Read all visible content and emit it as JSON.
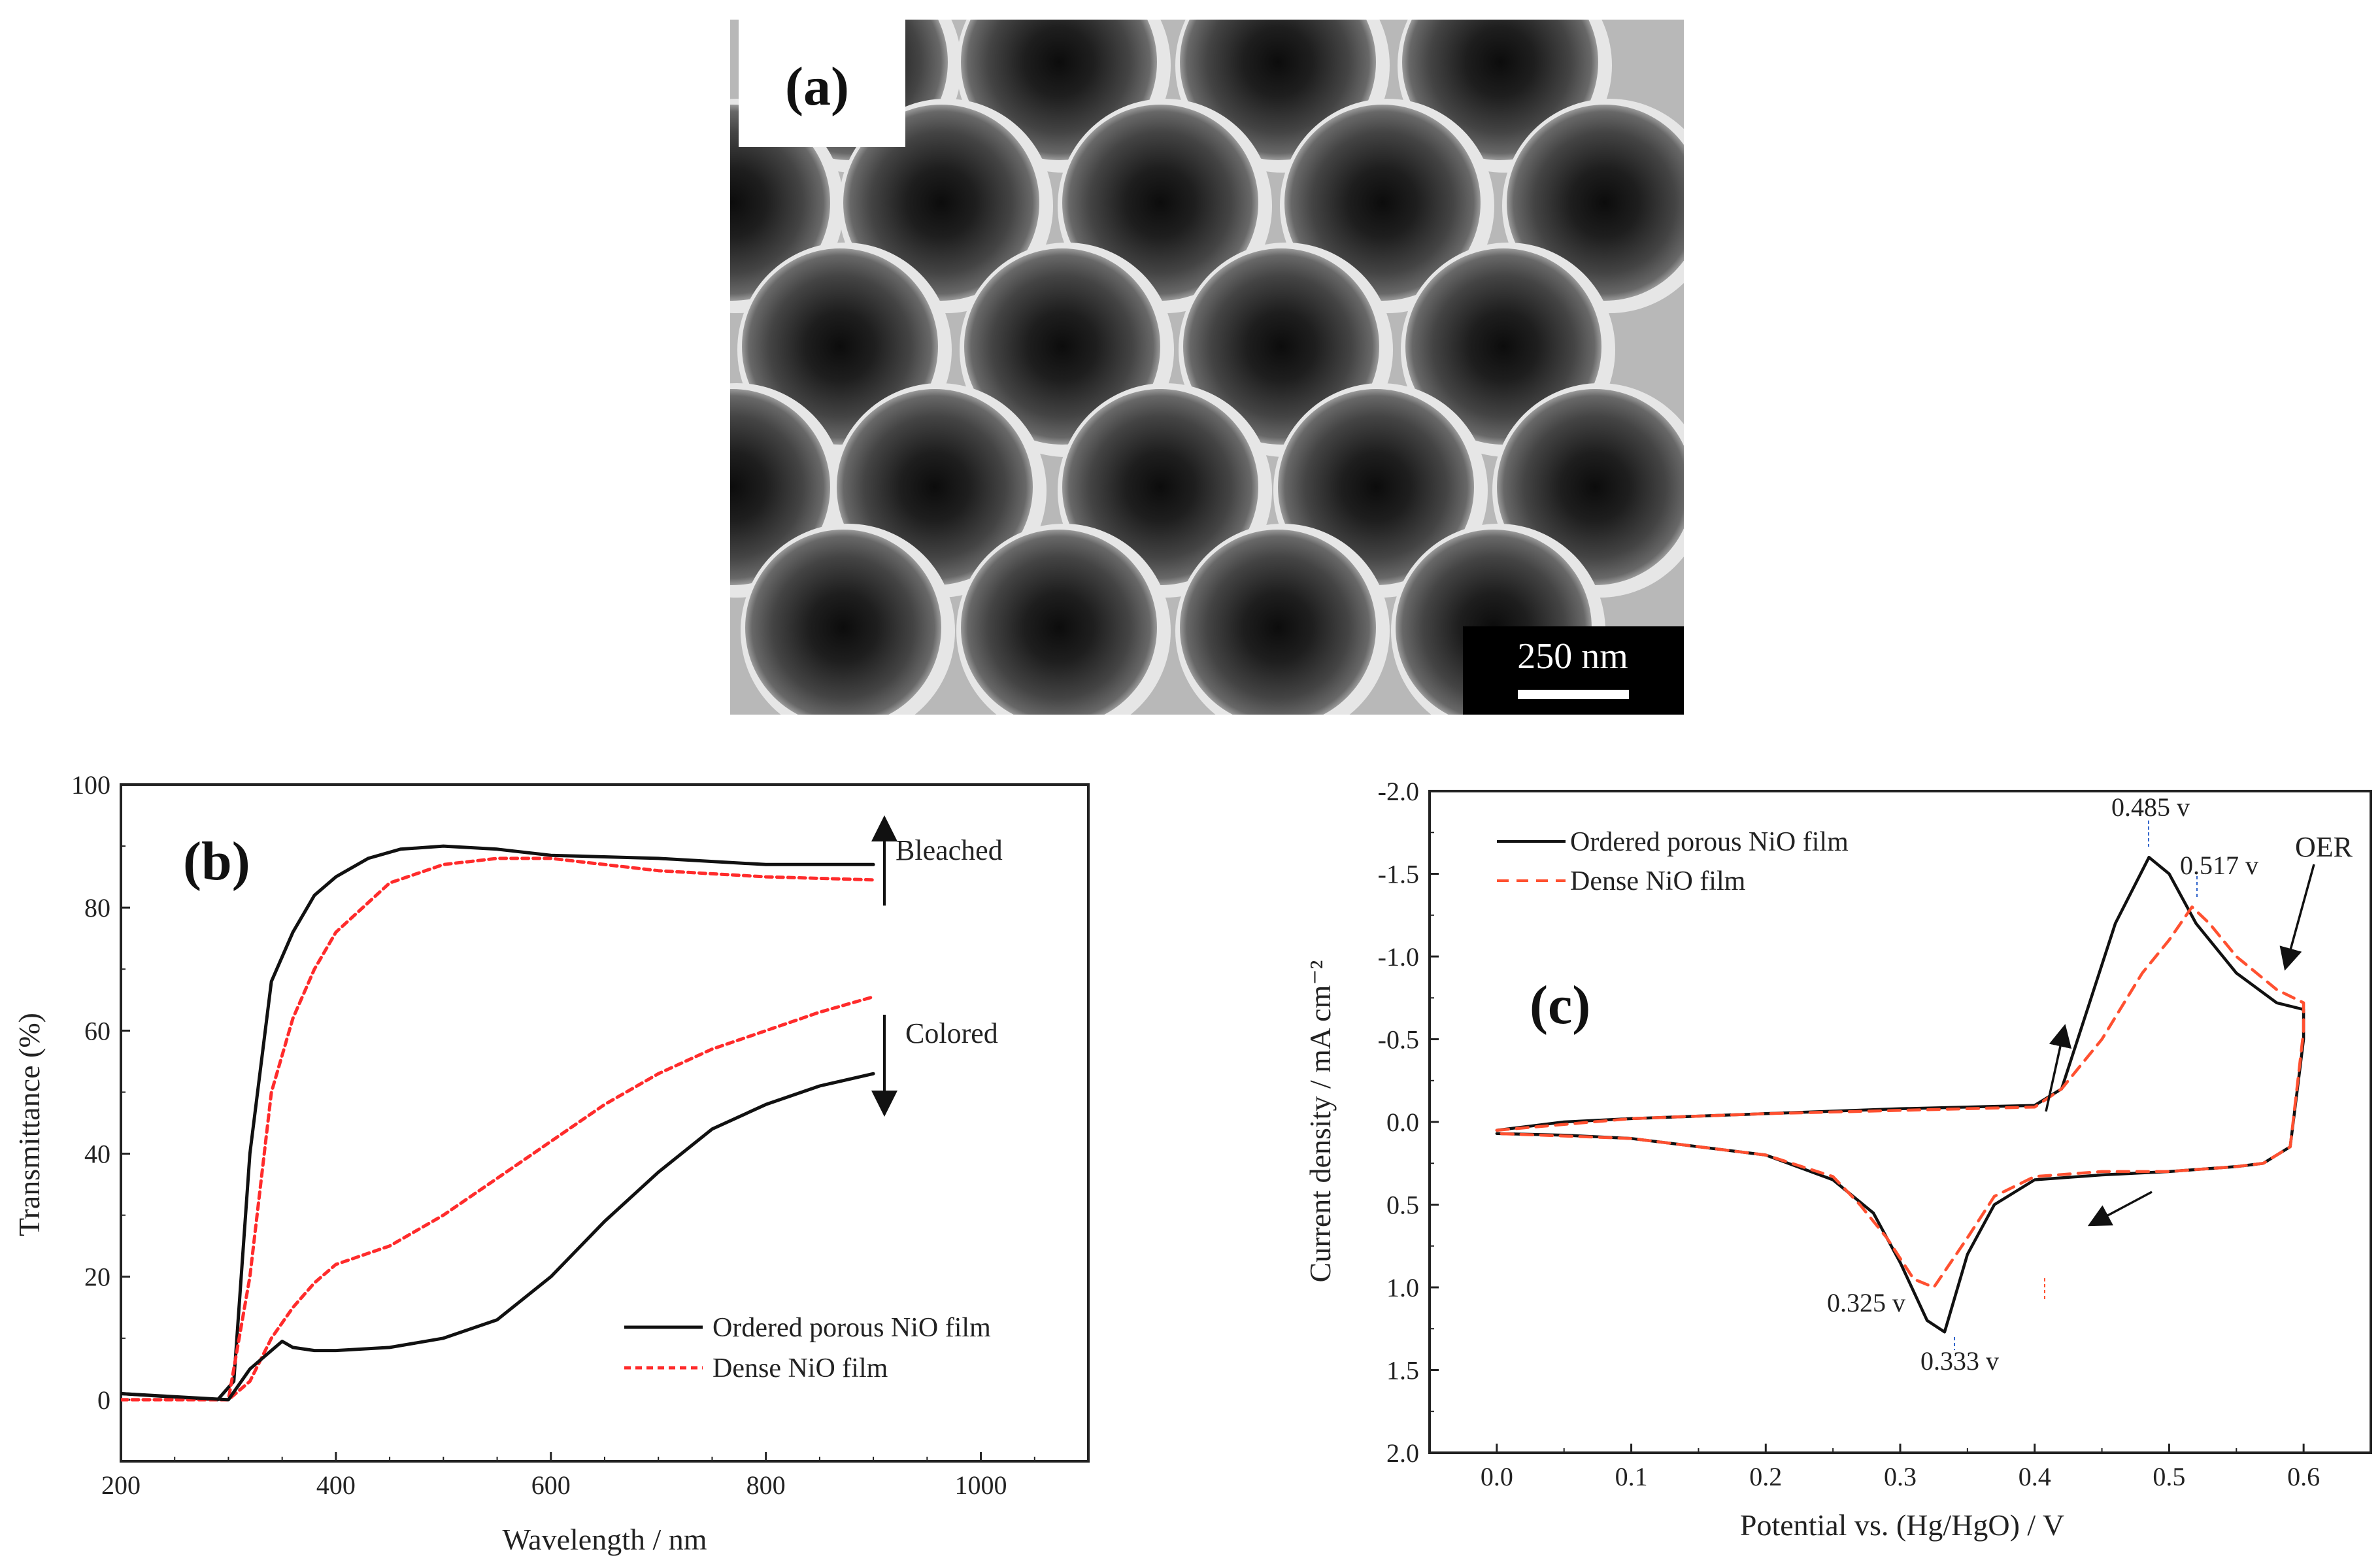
{
  "figure": {
    "panel_a": {
      "label": "(a)",
      "scale_bar": "250 nm"
    }
  },
  "chart_data": [
    {
      "type": "line",
      "panel": "(b)",
      "xlabel": "Wavelength / nm",
      "ylabel": "Transmittance (%)",
      "xlim": [
        200,
        1100
      ],
      "ylim": [
        -10,
        100
      ],
      "xticks": [
        200,
        400,
        600,
        800,
        1000
      ],
      "yticks": [
        0,
        20,
        40,
        60,
        80,
        100
      ],
      "legend_position": "bottom-right",
      "series": [
        {
          "name": "Ordered porous NiO film",
          "state": "Bleached",
          "color": "#111111",
          "dash": "solid",
          "x": [
            200,
            290,
            305,
            320,
            340,
            360,
            380,
            400,
            430,
            460,
            500,
            550,
            600,
            700,
            800,
            900
          ],
          "y": [
            1,
            0,
            3,
            40,
            68,
            76,
            82,
            85,
            88,
            89.5,
            90,
            89.5,
            88.5,
            88,
            87,
            87
          ]
        },
        {
          "name": "Dense NiO film",
          "state": "Bleached",
          "color": "#ff2b2b",
          "dash": "dashed",
          "x": [
            200,
            300,
            320,
            340,
            360,
            380,
            400,
            450,
            500,
            550,
            600,
            700,
            800,
            900
          ],
          "y": [
            0,
            0,
            20,
            50,
            62,
            70,
            76,
            84,
            87,
            88,
            88,
            86,
            85,
            84.5
          ]
        },
        {
          "name": "Dense NiO film",
          "state": "Colored",
          "color": "#ff2b2b",
          "dash": "dashed",
          "x": [
            200,
            300,
            320,
            340,
            360,
            380,
            400,
            450,
            500,
            550,
            600,
            650,
            700,
            750,
            800,
            850,
            900
          ],
          "y": [
            0,
            0,
            3,
            10,
            15,
            19,
            22,
            25,
            30,
            36,
            42,
            48,
            53,
            57,
            60,
            63,
            65.5
          ]
        },
        {
          "name": "Ordered porous NiO film",
          "state": "Colored",
          "color": "#111111",
          "dash": "solid",
          "x": [
            200,
            300,
            320,
            340,
            350,
            360,
            380,
            400,
            450,
            500,
            550,
            600,
            650,
            700,
            750,
            800,
            850,
            900
          ],
          "y": [
            1,
            0,
            5,
            8,
            9.5,
            8.5,
            8,
            8,
            8.5,
            10,
            13,
            20,
            29,
            37,
            44,
            48,
            51,
            53
          ]
        }
      ],
      "annotations": [
        "Bleached",
        "Colored"
      ]
    },
    {
      "type": "line",
      "panel": "(c)",
      "xlabel": "Potential vs. (Hg/HgO) / V",
      "ylabel": "Current density / mA cm⁻²",
      "xlim": [
        -0.05,
        0.65
      ],
      "ylim": [
        2.0,
        -2.0
      ],
      "xticks": [
        0.0,
        0.1,
        0.2,
        0.3,
        0.4,
        0.5,
        0.6
      ],
      "yticks": [
        -2.0,
        -1.5,
        -1.0,
        -0.5,
        0.0,
        0.5,
        1.0,
        1.5,
        2.0
      ],
      "ytick_labels": [
        "-2.0",
        "-1.5",
        "-1.0",
        "-0.5",
        "0.0",
        "0.5",
        "1.0",
        "1.5",
        "2.0"
      ],
      "xtick_labels": [
        "0.0",
        "0.1",
        "0.2",
        "0.3",
        "0.4",
        "0.5",
        "0.6"
      ],
      "legend_position": "top-left",
      "series": [
        {
          "name": "Ordered porous NiO film",
          "color": "#111111",
          "dash": "solid",
          "x": [
            0.0,
            0.05,
            0.1,
            0.2,
            0.3,
            0.4,
            0.42,
            0.44,
            0.46,
            0.485,
            0.5,
            0.52,
            0.55,
            0.58,
            0.6,
            0.6,
            0.59,
            0.57,
            0.55,
            0.5,
            0.45,
            0.4,
            0.37,
            0.35,
            0.333,
            0.32,
            0.3,
            0.28,
            0.25,
            0.2,
            0.1,
            0.05,
            0.0
          ],
          "y": [
            0.05,
            0.0,
            -0.02,
            -0.05,
            -0.08,
            -0.1,
            -0.2,
            -0.7,
            -1.2,
            -1.6,
            -1.5,
            -1.2,
            -0.9,
            -0.72,
            -0.68,
            -0.5,
            0.15,
            0.25,
            0.27,
            0.3,
            0.32,
            0.35,
            0.5,
            0.8,
            1.27,
            1.2,
            0.85,
            0.55,
            0.35,
            0.2,
            0.1,
            0.08,
            0.07
          ]
        },
        {
          "name": "Dense NiO film",
          "color": "#ff5030",
          "dash": "dashed",
          "x": [
            0.0,
            0.1,
            0.2,
            0.3,
            0.4,
            0.42,
            0.45,
            0.48,
            0.5,
            0.517,
            0.53,
            0.55,
            0.58,
            0.6,
            0.6,
            0.59,
            0.57,
            0.55,
            0.5,
            0.45,
            0.4,
            0.37,
            0.35,
            0.325,
            0.31,
            0.29,
            0.27,
            0.25,
            0.2,
            0.1,
            0.0
          ],
          "y": [
            0.05,
            -0.02,
            -0.05,
            -0.07,
            -0.09,
            -0.2,
            -0.5,
            -0.9,
            -1.1,
            -1.3,
            -1.2,
            -1.0,
            -0.8,
            -0.72,
            -0.55,
            0.15,
            0.25,
            0.27,
            0.3,
            0.3,
            0.33,
            0.45,
            0.7,
            1.0,
            0.95,
            0.7,
            0.5,
            0.33,
            0.2,
            0.1,
            0.07
          ]
        }
      ],
      "annotations": {
        "peak_ordered_ox": "0.485 v",
        "peak_dense_ox": "0.517 v",
        "peak_dense_red": "0.325 v",
        "peak_ordered_red": "0.333 v",
        "oer": "OER"
      }
    }
  ]
}
